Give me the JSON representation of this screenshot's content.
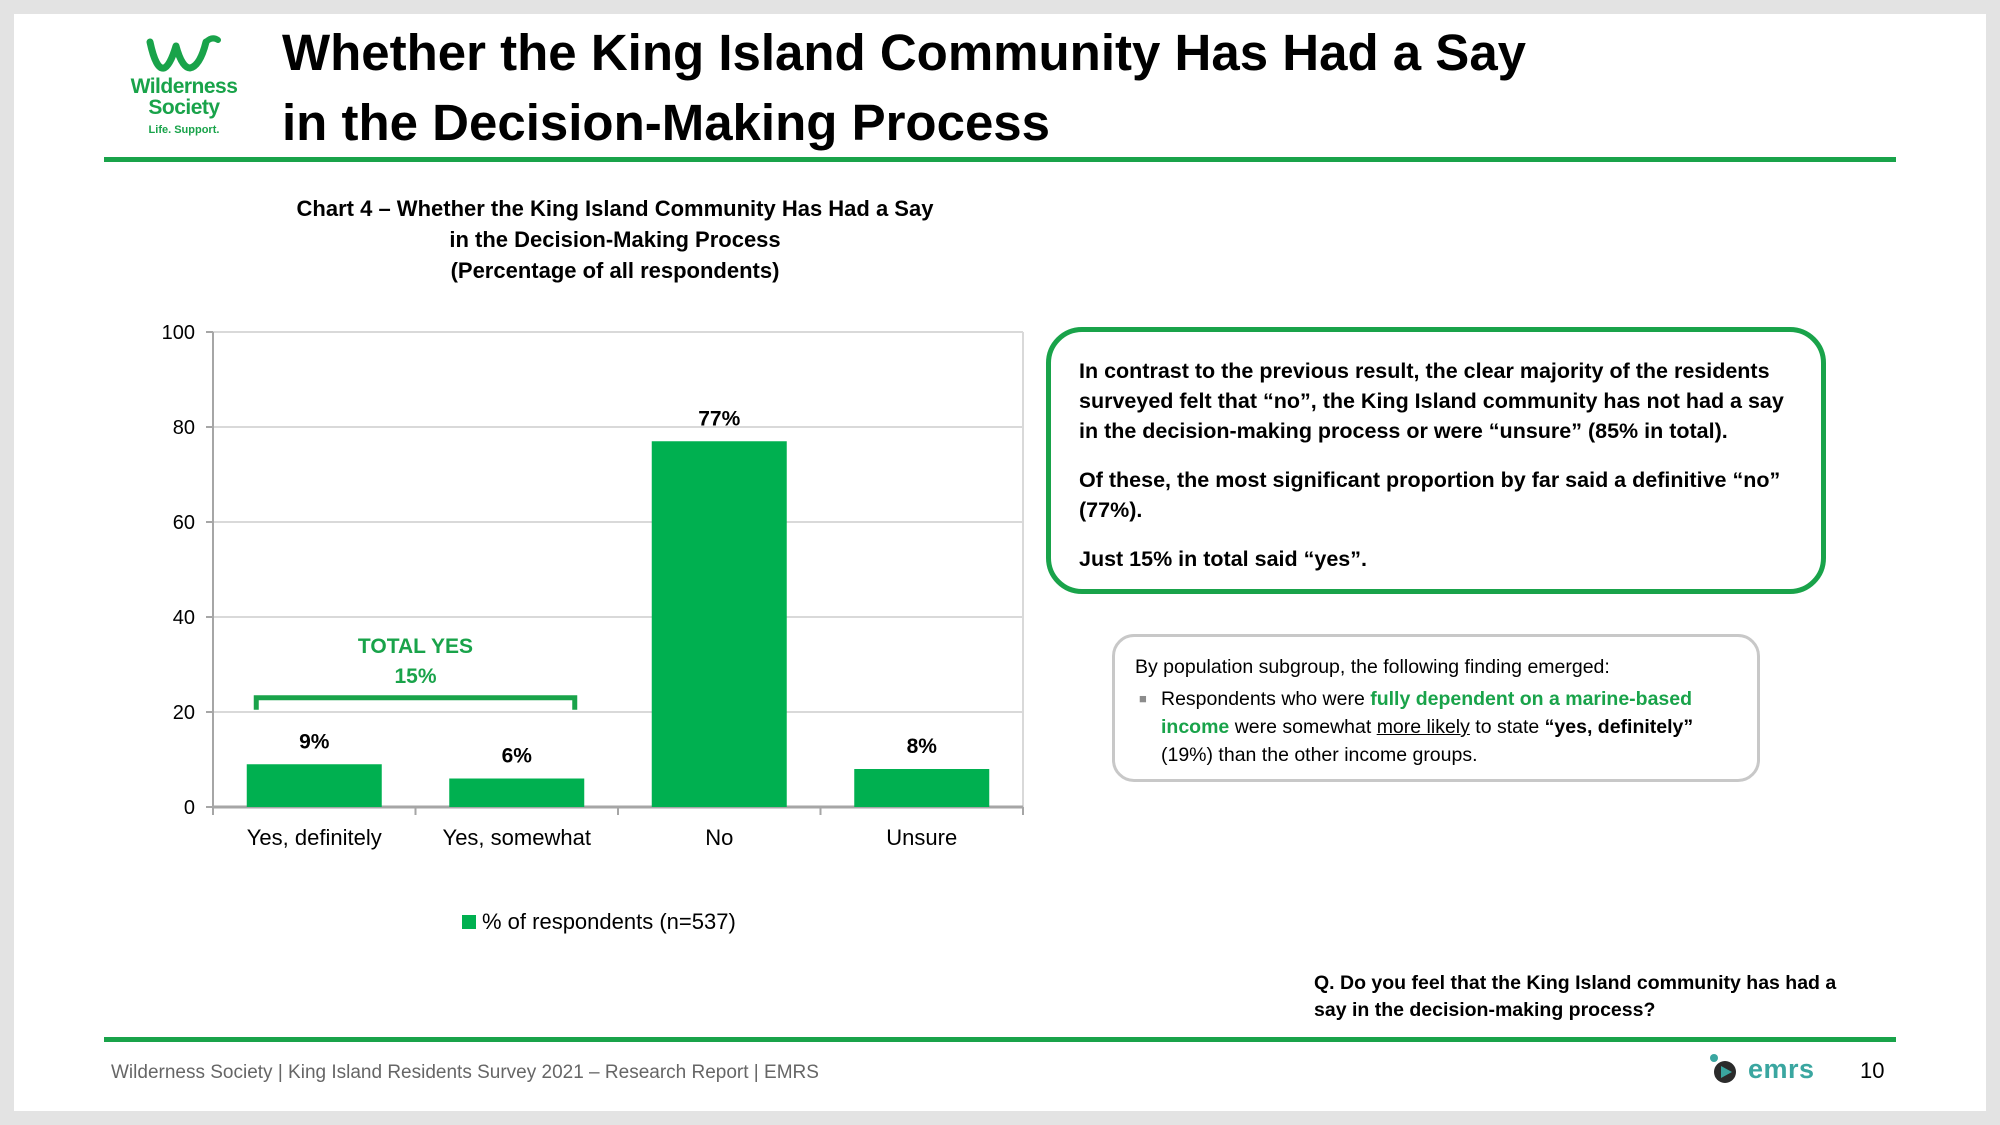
{
  "brand": {
    "logo_line1": "Wilderness",
    "logo_line2": "Society",
    "logo_tagline": "Life. Support.",
    "color": "#19a34a"
  },
  "page_title": "Whether the King Island Community Has Had a Say\nin the Decision-Making Process",
  "chart_data": {
    "type": "bar",
    "title": "Chart 4 –  Whether the King Island Community Has Had a Say\nin the Decision-Making Process\n(Percentage of all respondents)",
    "categories": [
      "Yes, definitely",
      "Yes, somewhat",
      "No",
      "Unsure"
    ],
    "series": [
      {
        "name": "% of respondents (n=537)",
        "values": [
          9,
          6,
          77,
          8
        ],
        "data_labels": [
          "9%",
          "6%",
          "77%",
          "8%"
        ],
        "color": "#00b050"
      }
    ],
    "ylim": [
      0,
      100
    ],
    "yticks": [
      0,
      20,
      40,
      60,
      80,
      100
    ],
    "grid": true,
    "legend": "bottom",
    "annotation": {
      "label_line1": "TOTAL YES",
      "label_line2": "15%",
      "spans": [
        "Yes, definitely",
        "Yes, somewhat"
      ],
      "color": "#19a34a"
    }
  },
  "callout": {
    "p1": "In contrast to the previous result, the clear majority of the residents surveyed felt that “no”, the King Island community has not had a say in the decision-making process or were “unsure” (85% in total).",
    "p2": "Of these, the most significant proportion by far said a definitive “no” (77%).",
    "p3": "Just 15% in total said “yes”."
  },
  "subgroup": {
    "intro": "By population subgroup, the following finding emerged:",
    "b1": "Respondents who were ",
    "b2": "fully dependent on a marine-based income",
    "b3": " were somewhat ",
    "b4": "more likely",
    "b5": " to state ",
    "b6": "“yes, definitely”",
    "b7": " (19%) than the other income groups."
  },
  "question": "Q. Do you feel that the King Island community has had a\nsay in the decision-making process?",
  "footer": {
    "text": "Wilderness Society | King Island Residents Survey 2021 – Research Report | EMRS",
    "emrs_logo": "emrs",
    "page_number": "10"
  }
}
